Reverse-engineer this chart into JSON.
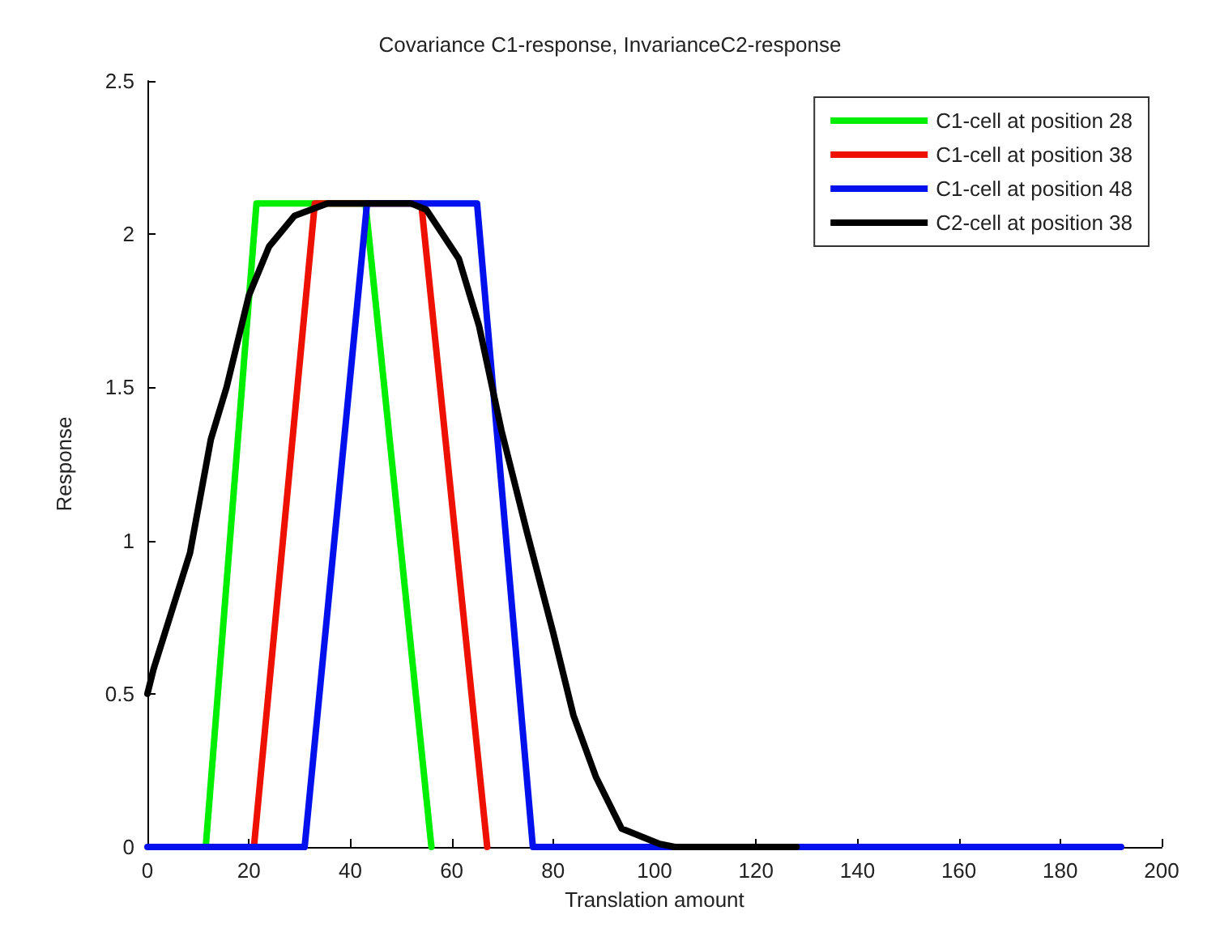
{
  "chart_data": {
    "type": "line",
    "title": "Covariance C1-response, InvarianceC2-response",
    "xlabel": "Translation amount",
    "ylabel": "Response",
    "xlim": [
      0,
      200
    ],
    "xticks": [
      0,
      20,
      40,
      60,
      80,
      100,
      120,
      140,
      160,
      180,
      200
    ],
    "ylim": [
      0,
      2.5
    ],
    "yticks": [
      0,
      0.5,
      1,
      1.5,
      2,
      2.5
    ],
    "grid": false,
    "legend": "top right",
    "marker": "none",
    "line_style": "solid",
    "series": [
      {
        "name": "C1-cell at position 28",
        "color": "#00ee00",
        "x": [
          11.5,
          21.5,
          43,
          56
        ],
        "values": [
          0,
          2.1,
          2.1,
          0
        ]
      },
      {
        "name": "C1-cell at position 38",
        "color": "#ee1100",
        "x": [
          21,
          33,
          54,
          67
        ],
        "values": [
          0,
          2.1,
          2.1,
          0
        ]
      },
      {
        "name": "C1-cell at position 48",
        "color": "#0011ee",
        "x": [
          0,
          31,
          43.3,
          65,
          76,
          192
        ],
        "values": [
          0,
          0,
          2.1,
          2.1,
          0,
          0
        ]
      },
      {
        "name": "C2-cell at position 38",
        "color": "#000000",
        "x": [
          0,
          1.2,
          8.4,
          12.5,
          15.6,
          20,
          24,
          29,
          35.5,
          52,
          55,
          61.4,
          65.4,
          69.8,
          74.8,
          80,
          84,
          88.4,
          93.5,
          101,
          104,
          128
        ],
        "values": [
          0.5,
          0.58,
          0.96,
          1.33,
          1.5,
          1.8,
          1.96,
          2.06,
          2.1,
          2.1,
          2.08,
          1.92,
          1.7,
          1.36,
          1.03,
          0.7,
          0.43,
          0.23,
          0.06,
          0.01,
          0,
          0
        ]
      }
    ]
  }
}
